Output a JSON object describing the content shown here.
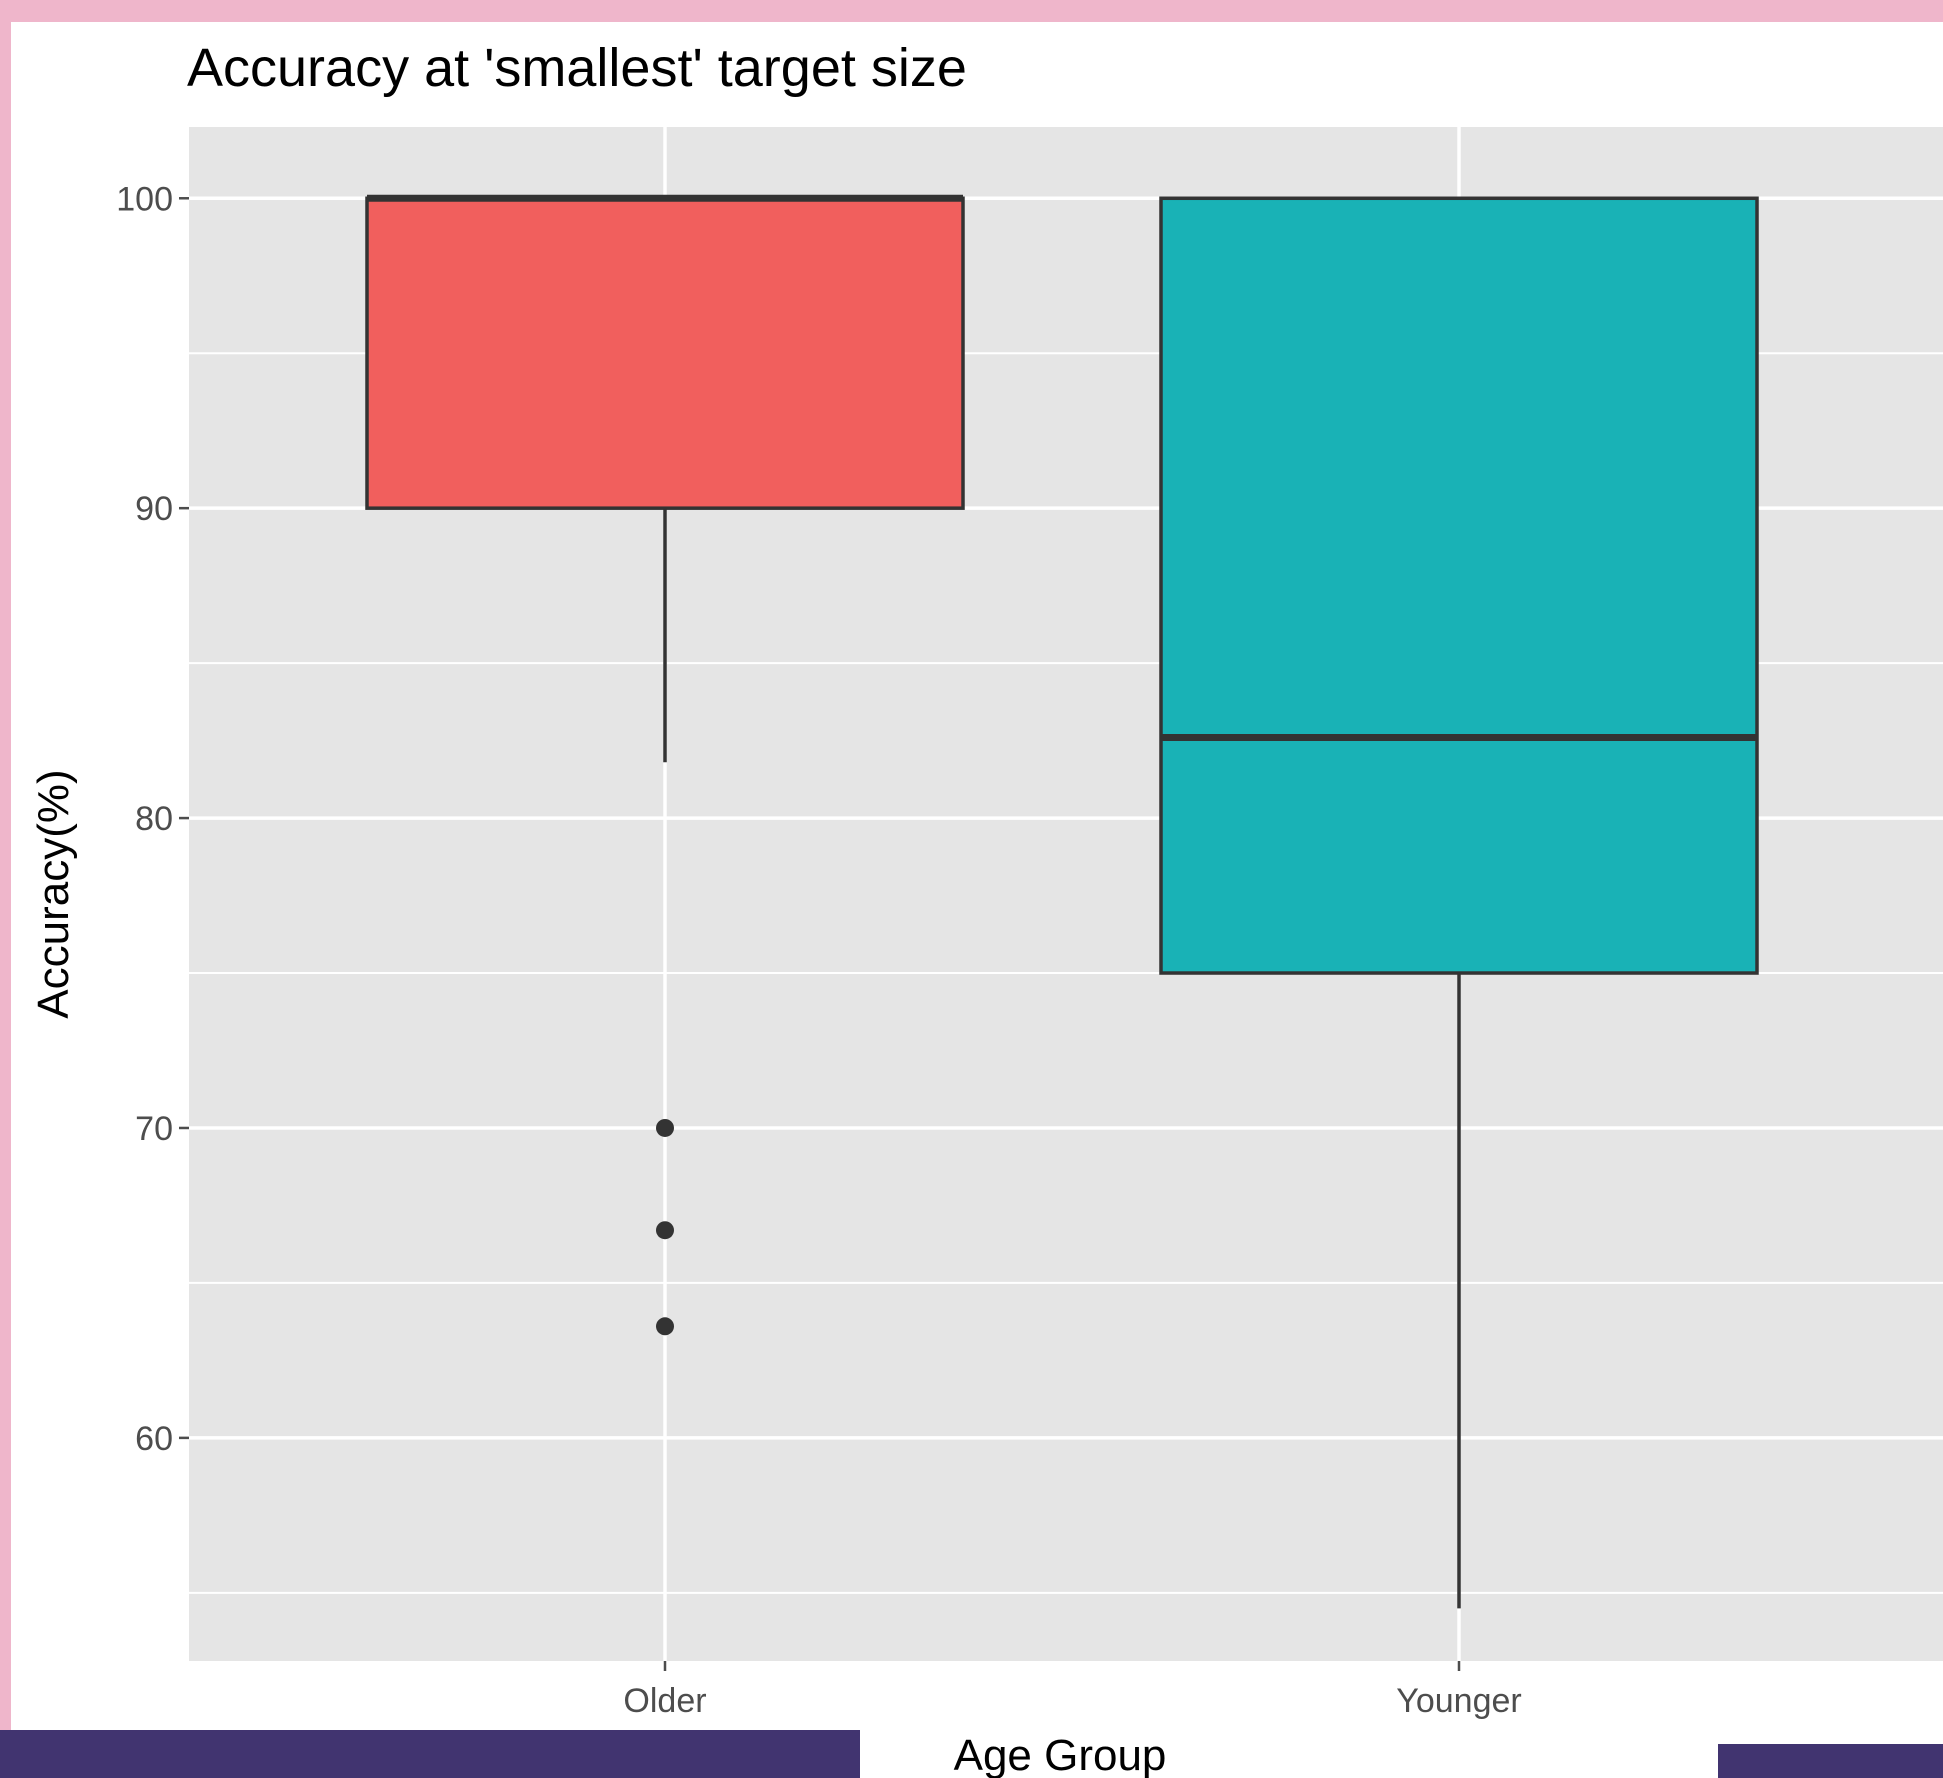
{
  "colors": {
    "frame": "#efb6cb",
    "bottom_band": "#413470",
    "panel_background": "#e5e5e5",
    "grid": "#ffffff",
    "box_outline": "#333333"
  },
  "chart_data": {
    "type": "box",
    "title": "Accuracy at 'smallest' target size",
    "xlabel": "Age Group",
    "ylabel": "Accuracy(%)",
    "categories": [
      "Older",
      "Younger"
    ],
    "ylim": [
      52.8,
      102.3
    ],
    "yticks": [
      60,
      70,
      80,
      90,
      100
    ],
    "grid": true,
    "legend": "none",
    "boxes": [
      {
        "category": "Older",
        "color": "#f15f5d",
        "q1": 90,
        "median": 100,
        "q3": 100,
        "whisker_low": 81.8,
        "whisker_high": 100,
        "outliers": [
          70,
          66.7,
          63.6
        ]
      },
      {
        "category": "Younger",
        "color": "#19b2b6",
        "q1": 75,
        "median": 82.6,
        "q3": 100,
        "whisker_low": 54.5,
        "whisker_high": 100,
        "outliers": []
      }
    ]
  }
}
